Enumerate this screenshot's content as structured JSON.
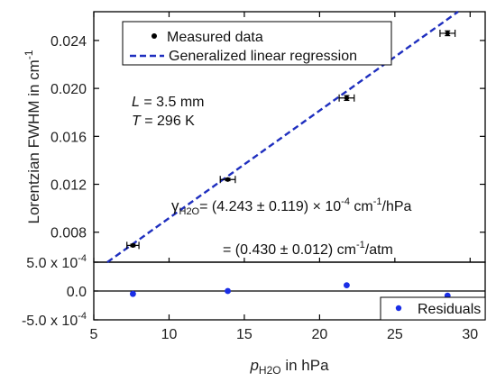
{
  "colors": {
    "data_points": "#000000",
    "fit_line": "#1f2fbf",
    "residual_points": "#1a2ee6",
    "axes": "#000000"
  },
  "chart_data": [
    {
      "type": "scatter",
      "panel": "main",
      "title": "",
      "xlabel": {
        "prefix": "p",
        "subscript": "H2O",
        "suffix": " in hPa"
      },
      "ylabel": {
        "main": "Lorentzian FWHM in cm",
        "superscript": "-1"
      },
      "xlim": [
        5,
        31
      ],
      "ylim": [
        0.0055,
        0.0264
      ],
      "xticks": [
        5,
        10,
        15,
        20,
        25,
        30
      ],
      "xtick_labels": [
        "5",
        "10",
        "15",
        "20",
        "25",
        "30"
      ],
      "yticks": [
        0.008,
        0.012,
        0.016,
        0.02,
        0.024
      ],
      "ytick_labels": [
        "0.008",
        "0.012",
        "0.016",
        "0.020",
        "0.024"
      ],
      "series": [
        {
          "name": "Measured data",
          "style": "points-with-error-bars",
          "x": [
            7.6,
            13.9,
            21.8,
            28.5
          ],
          "y": [
            0.0069,
            0.0124,
            0.0192,
            0.0246
          ],
          "x_err": [
            0.4,
            0.5,
            0.5,
            0.5
          ],
          "y_err": [
            0.0001,
            0.0001,
            0.0002,
            0.0002
          ]
        },
        {
          "name": "Generalized linear regression",
          "style": "dashed-line",
          "x": [
            5.9,
            29.2
          ],
          "y": [
            0.0055,
            0.0264
          ]
        }
      ],
      "legend": {
        "placement": "top",
        "entries": [
          "Measured data",
          "Generalized linear regression"
        ]
      },
      "annotations": {
        "length": {
          "symbol": "L",
          "text": " = 3.5 mm"
        },
        "temperature": {
          "symbol": "T",
          "text": " = 296 K"
        },
        "gamma": {
          "symbol": "γ",
          "symbol_sub": "H2O",
          "value": "= (4.243 ± 0.119) × 10",
          "exponent": "-4",
          "unit_a": " cm",
          "unit_a_sup": "-1",
          "unit_b": "/hPa"
        },
        "gamma_atm": {
          "value": "= (0.430 ± 0.012) cm",
          "unit_sup": "-1",
          "unit_b": "/atm"
        }
      }
    },
    {
      "type": "scatter",
      "panel": "residuals",
      "title": "",
      "xlim": [
        5,
        31
      ],
      "ylim": [
        -0.0005,
        0.0005
      ],
      "yticks": [
        0.0005,
        0,
        -0.0005
      ],
      "ytick_labels": [
        {
          "mantissa": "5.0 x 10",
          "exponent": "-4"
        },
        {
          "mantissa": "0.0",
          "exponent": ""
        },
        {
          "mantissa": "-5.0 x 10",
          "exponent": "-4"
        }
      ],
      "zero_line": true,
      "series": [
        {
          "name": "Residuals",
          "style": "points",
          "x": [
            7.6,
            13.9,
            21.8,
            28.5
          ],
          "y": [
            -5e-05,
            0.0,
            0.0001,
            -8e-05
          ]
        }
      ],
      "legend": {
        "placement": "bottom-right",
        "entries": [
          "Residuals"
        ]
      }
    }
  ]
}
